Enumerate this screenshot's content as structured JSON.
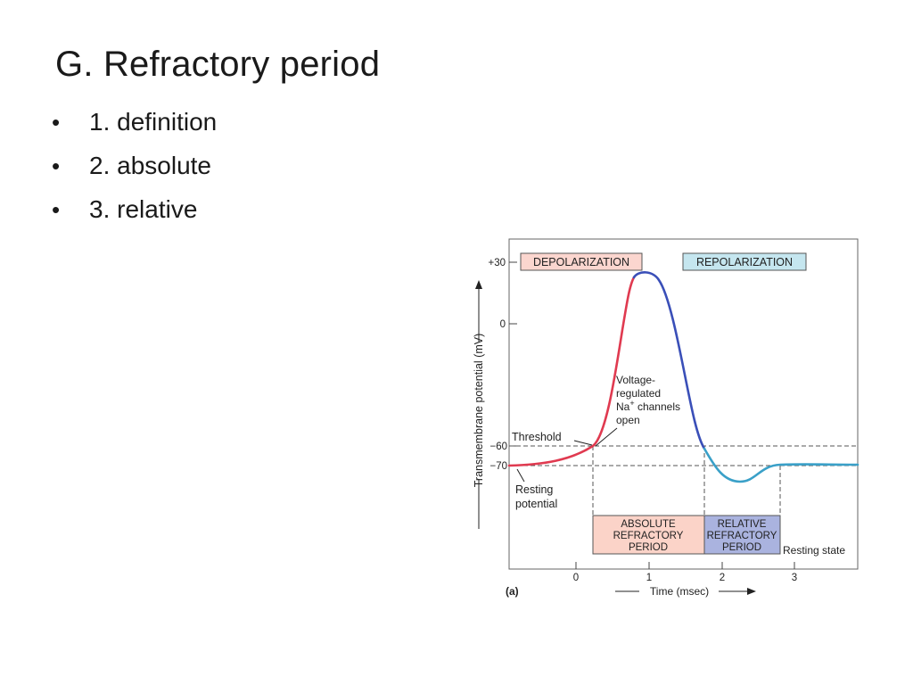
{
  "slide": {
    "title": "G.  Refractory period",
    "bullets": [
      {
        "marker": "•",
        "text": "1.  definition"
      },
      {
        "marker": "•",
        "text": "2.  absolute"
      },
      {
        "marker": "•",
        "text": "3.  relative"
      }
    ]
  },
  "figure": {
    "panel_label": "(a)",
    "y_axis_label": "Transmembrane potential (mV)",
    "x_axis_label": "Time (msec)",
    "y_ticks": [
      "+30",
      "0",
      "−60",
      "−70"
    ],
    "x_ticks": [
      "0",
      "1",
      "2",
      "3"
    ],
    "phase_depolarization": "DEPOLARIZATION",
    "phase_repolarization": "REPOLARIZATION",
    "threshold_label": "Threshold",
    "resting_potential_label": [
      "Resting",
      "potential"
    ],
    "voltage_note": [
      "Voltage-",
      "regulated",
      "Na",
      "+",
      " channels",
      "open"
    ],
    "absolute_refractory": [
      "ABSOLUTE",
      "REFRACTORY",
      "PERIOD"
    ],
    "relative_refractory": [
      "RELATIVE",
      "REFRACTORY",
      "PERIOD"
    ],
    "resting_state_label": "Resting state",
    "colors": {
      "depolarization_curve": "#e03a50",
      "peak_curve": "#3a4fb8",
      "repolarization_curve": "#3aa0c8",
      "depol_box_fill": "#fbd6cf",
      "repol_box_fill": "#c5e6ef",
      "absolute_fill": "#fbd3c8",
      "relative_fill": "#aab3df"
    }
  }
}
